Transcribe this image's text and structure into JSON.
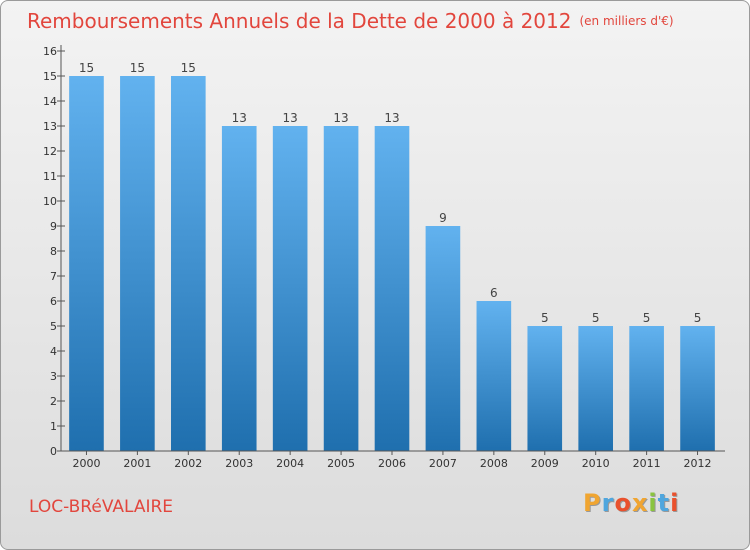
{
  "chart_data": {
    "type": "bar",
    "title": "Remboursements Annuels de la Dette de 2000 à 2012",
    "unit": "(en milliers d'€)",
    "categories": [
      "2000",
      "2001",
      "2002",
      "2003",
      "2004",
      "2005",
      "2006",
      "2007",
      "2008",
      "2009",
      "2010",
      "2011",
      "2012"
    ],
    "values": [
      15,
      15,
      15,
      13,
      13,
      13,
      13,
      9,
      6,
      5,
      5,
      5,
      5
    ],
    "ylim": [
      0,
      16
    ],
    "yticks": [
      0,
      1,
      2,
      3,
      4,
      5,
      6,
      7,
      8,
      9,
      10,
      11,
      12,
      13,
      14,
      15,
      16
    ],
    "xlabel": "",
    "ylabel": "",
    "grid": false
  },
  "place_name": "LOC-BRéVALAIRE",
  "brand": {
    "letters": [
      "P",
      "r",
      "o",
      "x",
      "i",
      "t",
      "i"
    ],
    "colors": [
      "#f0a531",
      "#4fa6de",
      "#e9512d",
      "#f0a531",
      "#8ac43f",
      "#4fa6de",
      "#e9512d"
    ]
  },
  "colors": {
    "bar_light": "#62b2ef",
    "bar_dark": "#1f6fae",
    "title": "#e2463d"
  }
}
